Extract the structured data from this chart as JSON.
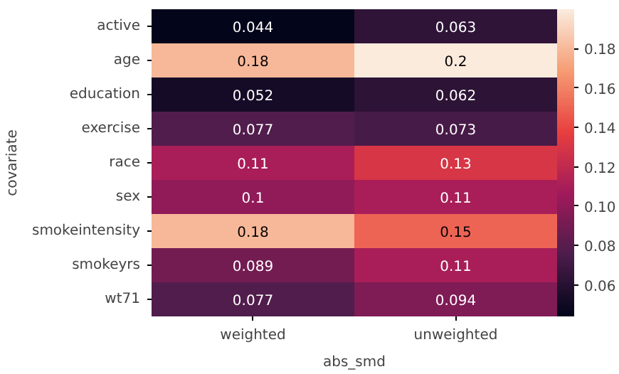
{
  "chart_data": {
    "type": "heatmap",
    "xlabel": "abs_smd",
    "ylabel": "covariate",
    "categories": [
      "weighted",
      "unweighted"
    ],
    "y_categories": [
      "active",
      "age",
      "education",
      "exercise",
      "race",
      "sex",
      "smokeintensity",
      "smokeyrs",
      "wt71"
    ],
    "cells": [
      [
        0.044,
        0.063
      ],
      [
        0.18,
        0.2
      ],
      [
        0.052,
        0.062
      ],
      [
        0.077,
        0.073
      ],
      [
        0.11,
        0.13
      ],
      [
        0.1,
        0.11
      ],
      [
        0.18,
        0.15
      ],
      [
        0.089,
        0.11
      ],
      [
        0.077,
        0.094
      ]
    ],
    "data_labels": true,
    "clim": [
      0.044,
      0.2
    ],
    "cticks": [
      0.06,
      0.08,
      {
        "value": 0.1,
        "label": "0.10"
      },
      0.12,
      0.14,
      0.16,
      0.18
    ]
  }
}
